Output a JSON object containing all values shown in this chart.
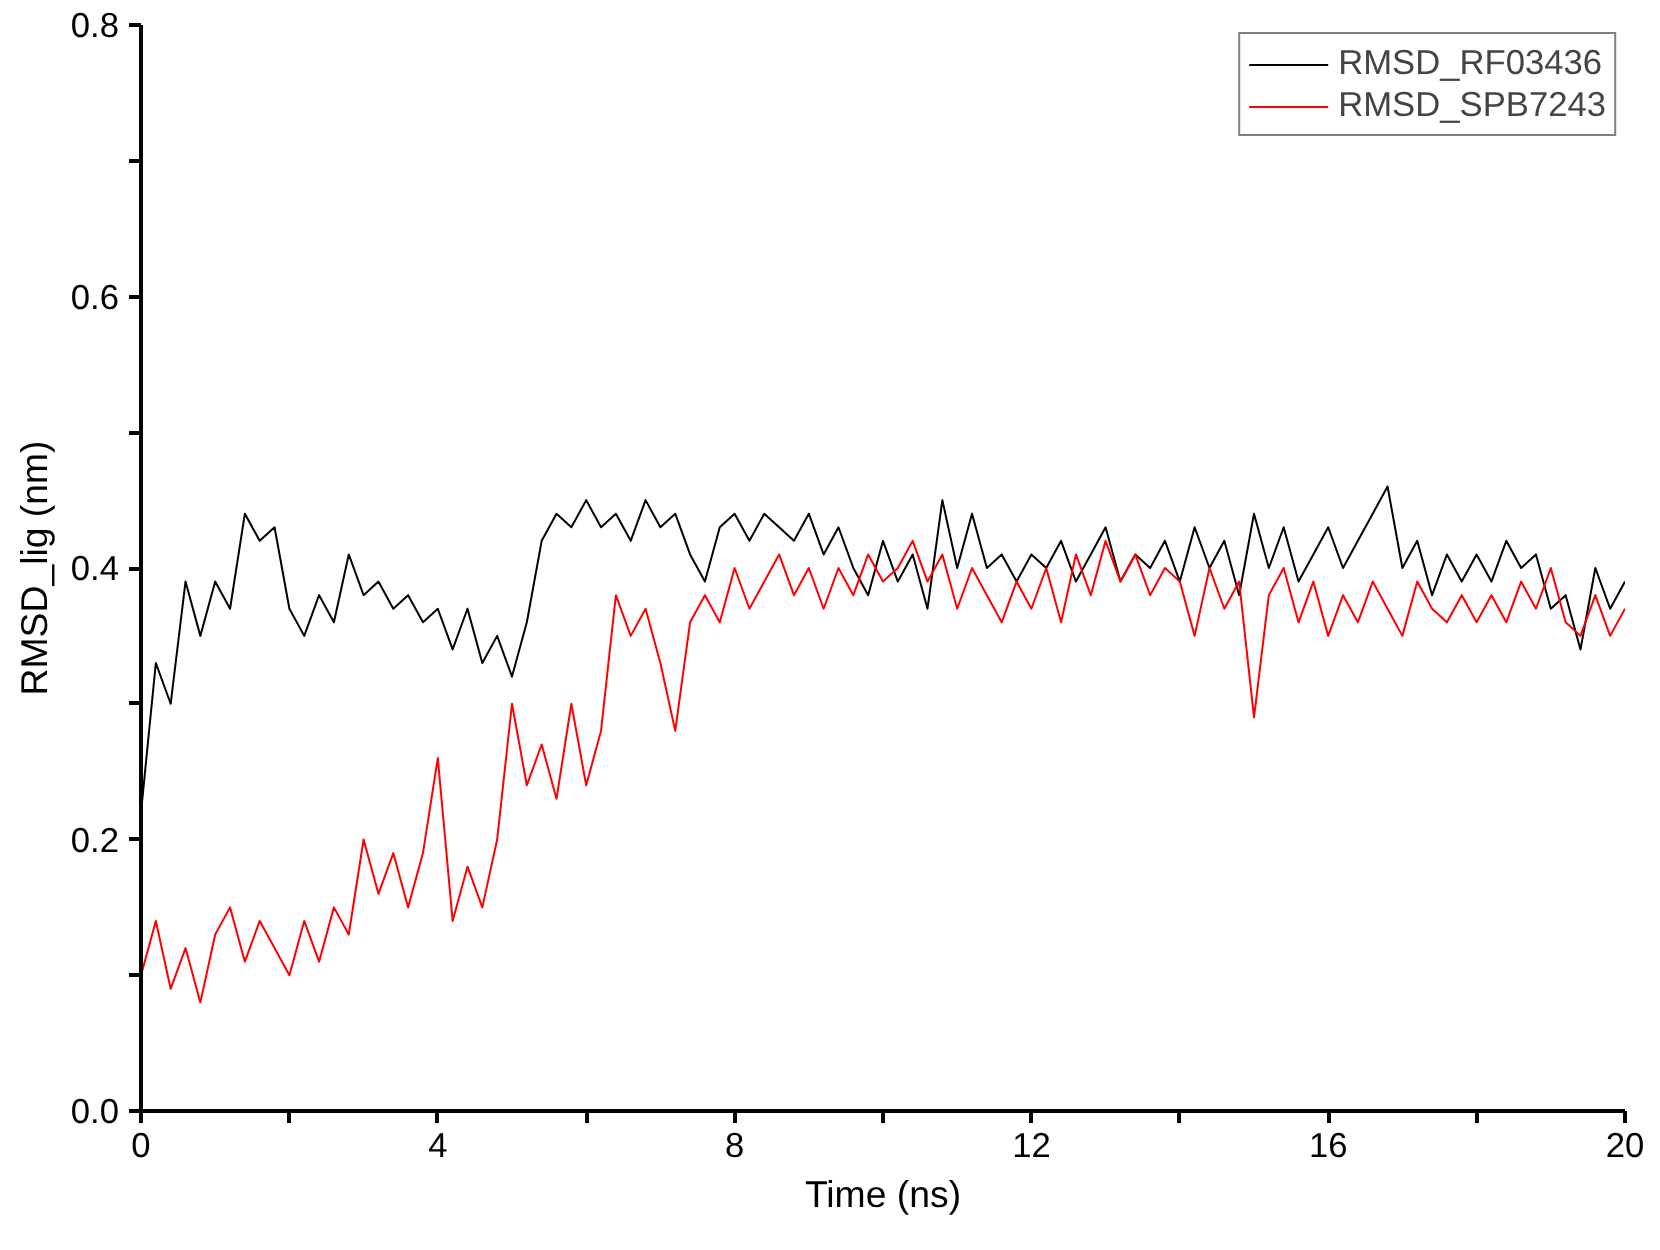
{
  "chart_data": {
    "type": "line",
    "xlabel": "Time (ns)",
    "ylabel": "RMSD_lig (nm)",
    "xlim": [
      0,
      20
    ],
    "ylim": [
      0,
      0.8
    ],
    "xticks": [
      0,
      {
        "value": 2,
        "label": null
      },
      4,
      {
        "value": 6,
        "label": null
      },
      8,
      {
        "value": 10,
        "label": null
      },
      12,
      {
        "value": 14,
        "label": null
      },
      16,
      {
        "value": 18,
        "label": null
      },
      20
    ],
    "yticks": [
      {
        "value": 0,
        "label": "0.0"
      },
      {
        "value": 0.1,
        "label": null
      },
      0.2,
      {
        "value": 0.3,
        "label": null
      },
      0.4,
      {
        "value": 0.5,
        "label": null
      },
      0.6,
      {
        "value": 0.7,
        "label": null
      },
      0.8
    ],
    "grid": false,
    "legend": "top right",
    "marker": "none",
    "line_style": "solid",
    "x": [
      0,
      0.2,
      0.4,
      0.6,
      0.8,
      1.0,
      1.2,
      1.4,
      1.6,
      1.8,
      2.0,
      2.2,
      2.4,
      2.6,
      2.8,
      3.0,
      3.2,
      3.4,
      3.6,
      3.8,
      4.0,
      4.2,
      4.4,
      4.6,
      4.8,
      5.0,
      5.2,
      5.4,
      5.6,
      5.8,
      6.0,
      6.2,
      6.4,
      6.6,
      6.8,
      7.0,
      7.2,
      7.4,
      7.6,
      7.8,
      8.0,
      8.2,
      8.4,
      8.6,
      8.8,
      9.0,
      9.2,
      9.4,
      9.6,
      9.8,
      10.0,
      10.2,
      10.4,
      10.6,
      10.8,
      11.0,
      11.2,
      11.4,
      11.6,
      11.8,
      12.0,
      12.2,
      12.4,
      12.6,
      12.8,
      13.0,
      13.2,
      13.4,
      13.6,
      13.8,
      14.0,
      14.2,
      14.4,
      14.6,
      14.8,
      15.0,
      15.2,
      15.4,
      15.6,
      15.8,
      16.0,
      16.2,
      16.4,
      16.6,
      16.8,
      17.0,
      17.2,
      17.4,
      17.6,
      17.8,
      18.0,
      18.2,
      18.4,
      18.6,
      18.8,
      19.0,
      19.2,
      19.4,
      19.6,
      19.8,
      20.0
    ],
    "series": [
      {
        "name": "RMSD_RF03436",
        "color": "#000000",
        "values": [
          0.22,
          0.33,
          0.3,
          0.39,
          0.35,
          0.39,
          0.37,
          0.44,
          0.42,
          0.43,
          0.37,
          0.35,
          0.38,
          0.36,
          0.41,
          0.38,
          0.39,
          0.37,
          0.38,
          0.36,
          0.37,
          0.34,
          0.37,
          0.33,
          0.35,
          0.32,
          0.36,
          0.42,
          0.44,
          0.43,
          0.45,
          0.43,
          0.44,
          0.42,
          0.45,
          0.43,
          0.44,
          0.41,
          0.39,
          0.43,
          0.44,
          0.42,
          0.44,
          0.43,
          0.42,
          0.44,
          0.41,
          0.43,
          0.4,
          0.38,
          0.42,
          0.39,
          0.41,
          0.37,
          0.45,
          0.4,
          0.44,
          0.4,
          0.41,
          0.39,
          0.41,
          0.4,
          0.42,
          0.39,
          0.41,
          0.43,
          0.39,
          0.41,
          0.4,
          0.42,
          0.39,
          0.43,
          0.4,
          0.42,
          0.38,
          0.44,
          0.4,
          0.43,
          0.39,
          0.41,
          0.43,
          0.4,
          0.42,
          0.44,
          0.46,
          0.4,
          0.42,
          0.38,
          0.41,
          0.39,
          0.41,
          0.39,
          0.42,
          0.4,
          0.41,
          0.37,
          0.38,
          0.34,
          0.4,
          0.37,
          0.39
        ]
      },
      {
        "name": "RMSD_SPB7243",
        "color": "#ff0000",
        "values": [
          0.1,
          0.14,
          0.09,
          0.12,
          0.08,
          0.13,
          0.15,
          0.11,
          0.14,
          0.12,
          0.1,
          0.14,
          0.11,
          0.15,
          0.13,
          0.2,
          0.16,
          0.19,
          0.15,
          0.19,
          0.26,
          0.14,
          0.18,
          0.15,
          0.2,
          0.3,
          0.24,
          0.27,
          0.23,
          0.3,
          0.24,
          0.28,
          0.38,
          0.35,
          0.37,
          0.33,
          0.28,
          0.36,
          0.38,
          0.36,
          0.4,
          0.37,
          0.39,
          0.41,
          0.38,
          0.4,
          0.37,
          0.4,
          0.38,
          0.41,
          0.39,
          0.4,
          0.42,
          0.39,
          0.41,
          0.37,
          0.4,
          0.38,
          0.36,
          0.39,
          0.37,
          0.4,
          0.36,
          0.41,
          0.38,
          0.42,
          0.39,
          0.41,
          0.38,
          0.4,
          0.39,
          0.35,
          0.4,
          0.37,
          0.39,
          0.29,
          0.38,
          0.4,
          0.36,
          0.39,
          0.35,
          0.38,
          0.36,
          0.39,
          0.37,
          0.35,
          0.39,
          0.37,
          0.36,
          0.38,
          0.36,
          0.38,
          0.36,
          0.39,
          0.37,
          0.4,
          0.36,
          0.35,
          0.38,
          0.35,
          0.37
        ]
      }
    ]
  }
}
